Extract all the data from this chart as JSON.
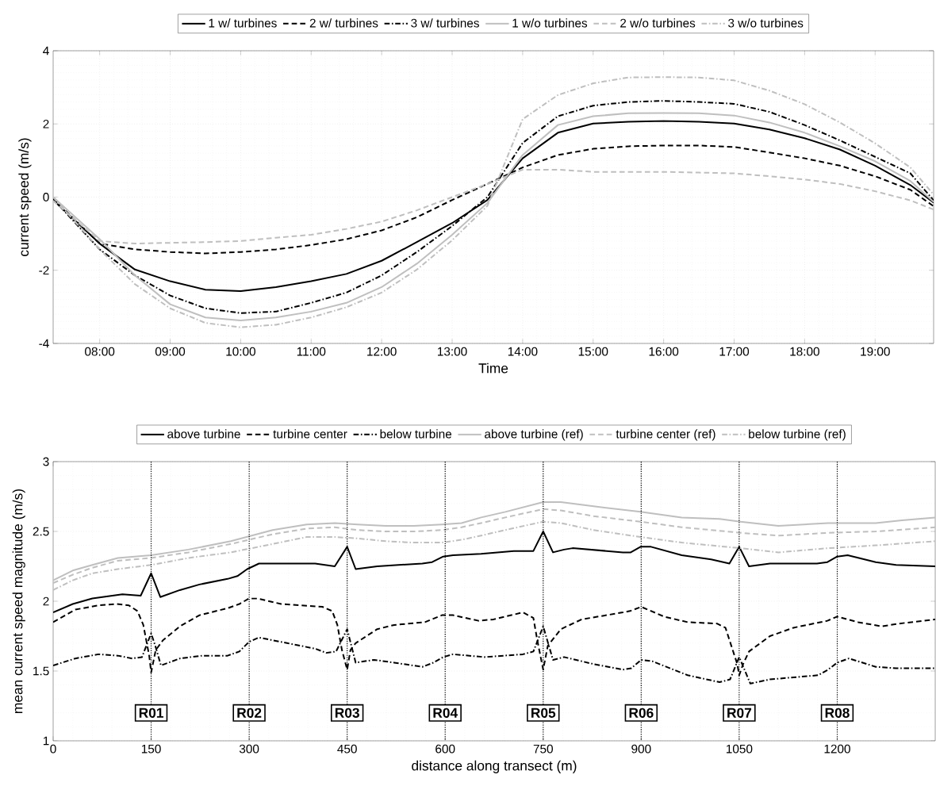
{
  "chart_data": [
    {
      "type": "line",
      "xlabel": "Time",
      "ylabel": "current speed (m/s)",
      "xlim": [
        7.34,
        19.83
      ],
      "ylim": [
        -4,
        4
      ],
      "xticks": [
        {
          "value": 8,
          "label": "08:00"
        },
        {
          "value": 9,
          "label": "09:00"
        },
        {
          "value": 10,
          "label": "10:00"
        },
        {
          "value": 11,
          "label": "11:00"
        },
        {
          "value": 12,
          "label": "12:00"
        },
        {
          "value": 13,
          "label": "13:00"
        },
        {
          "value": 14,
          "label": "14:00"
        },
        {
          "value": 15,
          "label": "15:00"
        },
        {
          "value": 16,
          "label": "16:00"
        },
        {
          "value": 17,
          "label": "17:00"
        },
        {
          "value": 18,
          "label": "18:00"
        },
        {
          "value": 19,
          "label": "19:00"
        }
      ],
      "yticks": [
        -4,
        -2,
        0,
        2,
        4
      ],
      "grid": true,
      "legend": "top",
      "x": [
        7.34,
        8,
        8.5,
        9,
        9.5,
        10,
        10.5,
        11,
        11.5,
        12,
        12.5,
        13,
        13.5,
        14,
        14.5,
        15,
        15.5,
        16,
        16.5,
        17,
        17.5,
        18,
        18.5,
        19,
        19.5,
        19.83
      ],
      "series": [
        {
          "name": "1 w/ turbines",
          "color": "#000000",
          "line_style": "solid",
          "values": [
            -0.08,
            -1.27,
            -1.98,
            -2.3,
            -2.53,
            -2.57,
            -2.46,
            -2.3,
            -2.1,
            -1.74,
            -1.23,
            -0.71,
            -0.08,
            1.06,
            1.76,
            2.01,
            2.06,
            2.08,
            2.06,
            2.01,
            1.85,
            1.61,
            1.3,
            0.86,
            0.33,
            -0.15
          ]
        },
        {
          "name": "2 w/ turbines",
          "color": "#000000",
          "line_style": "dashed",
          "values": [
            -0.05,
            -1.27,
            -1.43,
            -1.5,
            -1.54,
            -1.5,
            -1.43,
            -1.31,
            -1.15,
            -0.91,
            -0.55,
            -0.08,
            0.36,
            0.81,
            1.15,
            1.32,
            1.39,
            1.41,
            1.41,
            1.37,
            1.22,
            1.06,
            0.86,
            0.57,
            0.2,
            -0.25
          ]
        },
        {
          "name": "3 w/ turbines",
          "color": "#000000",
          "line_style": "dashdot",
          "values": [
            -0.05,
            -1.43,
            -2.14,
            -2.69,
            -3.04,
            -3.17,
            -3.13,
            -2.89,
            -2.61,
            -2.14,
            -1.5,
            -0.79,
            0,
            1.48,
            2.21,
            2.5,
            2.6,
            2.63,
            2.6,
            2.55,
            2.33,
            1.97,
            1.55,
            1.1,
            0.65,
            -0.09
          ]
        },
        {
          "name": "1 w/o turbines",
          "color": "#bfbfbf",
          "line_style": "solid",
          "values": [
            0,
            -1.15,
            -2.14,
            -2.93,
            -3.29,
            -3.37,
            -3.29,
            -3.13,
            -2.89,
            -2.46,
            -1.82,
            -1.03,
            -0.16,
            1.15,
            1.97,
            2.21,
            2.29,
            2.3,
            2.29,
            2.23,
            2.04,
            1.76,
            1.39,
            0.98,
            0.44,
            -0.13
          ]
        },
        {
          "name": "2 w/o turbines",
          "color": "#bfbfbf",
          "line_style": "dashed",
          "values": [
            -0.1,
            -1.2,
            -1.27,
            -1.25,
            -1.23,
            -1.2,
            -1.11,
            -1.03,
            -0.87,
            -0.67,
            -0.36,
            0,
            0.36,
            0.75,
            0.75,
            0.69,
            0.69,
            0.69,
            0.67,
            0.65,
            0.57,
            0.48,
            0.36,
            0.16,
            -0.09,
            -0.34
          ]
        },
        {
          "name": "3 w/o turbines",
          "color": "#bfbfbf",
          "line_style": "dashdot",
          "values": [
            0,
            -1.43,
            -2.38,
            -3.04,
            -3.44,
            -3.56,
            -3.49,
            -3.29,
            -3.01,
            -2.61,
            -1.98,
            -1.18,
            -0.24,
            2.13,
            2.79,
            3.11,
            3.27,
            3.28,
            3.27,
            3.19,
            2.91,
            2.54,
            2.04,
            1.47,
            0.81,
            0.07
          ]
        }
      ]
    },
    {
      "type": "line",
      "xlabel": "distance along transect (m)",
      "ylabel": "mean current speed magnitude (m/s)",
      "xlim": [
        0,
        1350
      ],
      "ylim": [
        1,
        3
      ],
      "xticks": [
        0,
        150,
        300,
        450,
        600,
        750,
        900,
        1050,
        1200
      ],
      "yticks": [
        1,
        1.5,
        2,
        2.5,
        3
      ],
      "grid": true,
      "legend": "top",
      "series": [
        {
          "name": "above turbine",
          "color": "#000000",
          "line_style": "solid",
          "x": [
            0,
            30,
            60,
            106,
            134,
            150,
            164,
            194,
            224,
            267,
            282,
            297,
            315,
            345,
            401,
            431,
            450,
            463,
            496,
            565,
            580,
            597,
            612,
            655,
            705,
            735,
            750,
            765,
            782,
            795,
            872,
            884,
            899,
            915,
            962,
            1007,
            1035,
            1050,
            1065,
            1097,
            1169,
            1185,
            1200,
            1216,
            1259,
            1290,
            1350
          ],
          "values": [
            1.92,
            1.98,
            2.02,
            2.05,
            2.04,
            2.2,
            2.03,
            2.08,
            2.12,
            2.16,
            2.18,
            2.23,
            2.27,
            2.27,
            2.27,
            2.25,
            2.39,
            2.23,
            2.25,
            2.27,
            2.28,
            2.32,
            2.33,
            2.34,
            2.36,
            2.36,
            2.5,
            2.35,
            2.37,
            2.38,
            2.35,
            2.35,
            2.39,
            2.39,
            2.33,
            2.3,
            2.27,
            2.39,
            2.25,
            2.27,
            2.27,
            2.28,
            2.32,
            2.33,
            2.28,
            2.26,
            2.25
          ]
        },
        {
          "name": "turbine center",
          "color": "#000000",
          "line_style": "dashed",
          "x": [
            0,
            34,
            69,
            97,
            116,
            129,
            138,
            147,
            150,
            157,
            168,
            194,
            224,
            267,
            285,
            300,
            312,
            349,
            379,
            412,
            427,
            435,
            442,
            450,
            455,
            463,
            496,
            522,
            569,
            595,
            612,
            651,
            674,
            719,
            735,
            741,
            750,
            757,
            777,
            809,
            872,
            883,
            900,
            935,
            971,
            1016,
            1029,
            1038,
            1047,
            1050,
            1056,
            1065,
            1097,
            1133,
            1185,
            1200,
            1232,
            1268,
            1295,
            1350
          ],
          "values": [
            1.85,
            1.94,
            1.97,
            1.98,
            1.97,
            1.93,
            1.83,
            1.61,
            1.49,
            1.65,
            1.72,
            1.82,
            1.9,
            1.95,
            1.98,
            2.02,
            2.02,
            1.98,
            1.97,
            1.96,
            1.93,
            1.83,
            1.65,
            1.51,
            1.65,
            1.7,
            1.8,
            1.83,
            1.85,
            1.9,
            1.9,
            1.86,
            1.87,
            1.92,
            1.88,
            1.72,
            1.51,
            1.68,
            1.8,
            1.87,
            1.92,
            1.93,
            1.96,
            1.89,
            1.85,
            1.84,
            1.81,
            1.68,
            1.55,
            1.47,
            1.55,
            1.64,
            1.75,
            1.81,
            1.86,
            1.89,
            1.85,
            1.82,
            1.84,
            1.87
          ]
        },
        {
          "name": "below turbine",
          "color": "#000000",
          "line_style": "dashdot",
          "x": [
            0,
            34,
            69,
            99,
            121,
            136,
            150,
            157,
            165,
            194,
            228,
            267,
            285,
            300,
            315,
            358,
            401,
            418,
            433,
            450,
            463,
            491,
            522,
            565,
            582,
            597,
            612,
            660,
            719,
            735,
            750,
            765,
            782,
            827,
            872,
            885,
            900,
            917,
            971,
            1020,
            1036,
            1050,
            1067,
            1097,
            1171,
            1186,
            1200,
            1218,
            1259,
            1290,
            1350
          ],
          "values": [
            1.54,
            1.59,
            1.62,
            1.61,
            1.59,
            1.6,
            1.77,
            1.67,
            1.54,
            1.59,
            1.61,
            1.61,
            1.64,
            1.71,
            1.74,
            1.7,
            1.66,
            1.63,
            1.64,
            1.8,
            1.56,
            1.58,
            1.56,
            1.53,
            1.56,
            1.6,
            1.62,
            1.6,
            1.62,
            1.64,
            1.82,
            1.58,
            1.6,
            1.55,
            1.51,
            1.52,
            1.58,
            1.57,
            1.47,
            1.42,
            1.44,
            1.6,
            1.41,
            1.44,
            1.47,
            1.51,
            1.56,
            1.59,
            1.53,
            1.52,
            1.52
          ]
        },
        {
          "name": "above turbine (ref)",
          "color": "#bfbfbf",
          "line_style": "solid",
          "x": [
            0,
            30,
            60,
            99,
            150,
            207,
            272,
            336,
            388,
            431,
            466,
            509,
            552,
            595,
            625,
            655,
            692,
            750,
            777,
            827,
            899,
            962,
            1020,
            1052,
            1110,
            1186,
            1259,
            1299,
            1350
          ],
          "values": [
            2.15,
            2.22,
            2.26,
            2.31,
            2.33,
            2.37,
            2.43,
            2.51,
            2.55,
            2.56,
            2.55,
            2.54,
            2.54,
            2.55,
            2.56,
            2.6,
            2.64,
            2.71,
            2.71,
            2.68,
            2.64,
            2.6,
            2.59,
            2.57,
            2.54,
            2.56,
            2.56,
            2.58,
            2.6
          ]
        },
        {
          "name": "turbine center (ref)",
          "color": "#bfbfbf",
          "line_style": "dashed",
          "x": [
            0,
            30,
            60,
            99,
            150,
            207,
            272,
            336,
            388,
            431,
            466,
            509,
            552,
            595,
            625,
            655,
            692,
            750,
            777,
            827,
            899,
            962,
            1052,
            1110,
            1186,
            1259,
            1350
          ],
          "values": [
            2.13,
            2.19,
            2.24,
            2.29,
            2.31,
            2.35,
            2.41,
            2.48,
            2.52,
            2.53,
            2.51,
            2.5,
            2.5,
            2.51,
            2.53,
            2.56,
            2.6,
            2.66,
            2.65,
            2.61,
            2.57,
            2.53,
            2.49,
            2.47,
            2.49,
            2.5,
            2.53
          ]
        },
        {
          "name": "below turbine (ref)",
          "color": "#bfbfbf",
          "line_style": "dashdot",
          "x": [
            0,
            30,
            60,
            99,
            150,
            207,
            272,
            336,
            388,
            431,
            466,
            509,
            552,
            595,
            625,
            655,
            692,
            750,
            777,
            827,
            899,
            962,
            1052,
            1110,
            1186,
            1259,
            1350
          ],
          "values": [
            2.08,
            2.15,
            2.2,
            2.23,
            2.26,
            2.31,
            2.35,
            2.41,
            2.46,
            2.46,
            2.45,
            2.43,
            2.42,
            2.42,
            2.44,
            2.47,
            2.51,
            2.57,
            2.56,
            2.51,
            2.46,
            2.42,
            2.38,
            2.35,
            2.38,
            2.4,
            2.43
          ]
        }
      ],
      "ref_lines": [
        {
          "axis": "x",
          "value": 150,
          "label": "R01",
          "line_style": "dotted"
        },
        {
          "axis": "x",
          "value": 300,
          "label": "R02",
          "line_style": "dotted"
        },
        {
          "axis": "x",
          "value": 450,
          "label": "R03",
          "line_style": "dotted"
        },
        {
          "axis": "x",
          "value": 600,
          "label": "R04",
          "line_style": "dotted"
        },
        {
          "axis": "x",
          "value": 750,
          "label": "R05",
          "line_style": "dotted"
        },
        {
          "axis": "x",
          "value": 900,
          "label": "R06",
          "line_style": "dotted"
        },
        {
          "axis": "x",
          "value": 1050,
          "label": "R07",
          "line_style": "dotted"
        },
        {
          "axis": "x",
          "value": 1200,
          "label": "R08",
          "line_style": "dotted"
        }
      ]
    }
  ]
}
